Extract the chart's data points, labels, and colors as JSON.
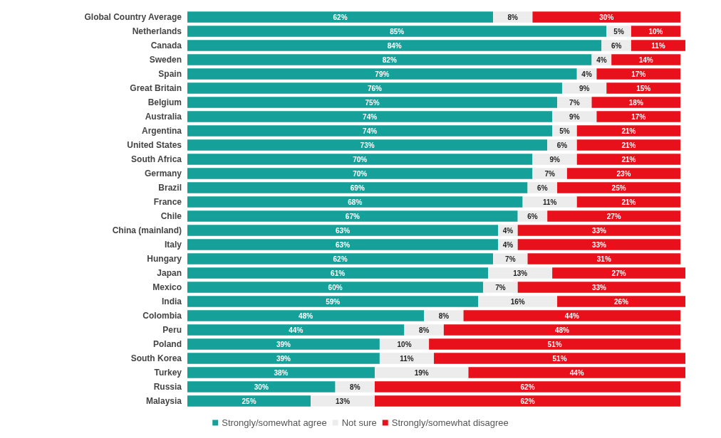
{
  "chart_data": {
    "type": "bar",
    "orientation": "horizontal",
    "stacked": true,
    "legend": "bottom",
    "tick_labels": "y",
    "categories": [
      "Global Country Average",
      "Netherlands",
      "Canada",
      "Sweden",
      "Spain",
      "Great Britain",
      "Belgium",
      "Australia",
      "Argentina",
      "United States",
      "South Africa",
      "Germany",
      "Brazil",
      "France",
      "Chile",
      "China (mainland)",
      "Italy",
      "Hungary",
      "Japan",
      "Mexico",
      "India",
      "Colombia",
      "Peru",
      "Poland",
      "South Korea",
      "Turkey",
      "Russia",
      "Malaysia"
    ],
    "series": [
      {
        "name": "Strongly/somewhat agree",
        "color": "#16a09a",
        "values": [
          62,
          85,
          84,
          82,
          79,
          76,
          75,
          74,
          74,
          73,
          70,
          70,
          69,
          68,
          67,
          63,
          63,
          62,
          61,
          60,
          59,
          48,
          44,
          39,
          39,
          38,
          30,
          25
        ],
        "value_labels": [
          "62%",
          "85%",
          "84%",
          "82%",
          "79%",
          "76%",
          "75%",
          "74%",
          "74%",
          "73%",
          "70%",
          "70%",
          "69%",
          "68%",
          "67%",
          "63%",
          "63%",
          "62%",
          "61%",
          "60%",
          "59%",
          "48%",
          "44%",
          "39%",
          "39%",
          "38%",
          "30%",
          "25%"
        ]
      },
      {
        "name": "Not sure",
        "color": "#ececec",
        "values": [
          8,
          5,
          6,
          4,
          4,
          9,
          7,
          9,
          5,
          6,
          9,
          7,
          6,
          11,
          6,
          4,
          4,
          7,
          13,
          7,
          16,
          8,
          8,
          10,
          11,
          19,
          8,
          13
        ],
        "value_labels": [
          "8%",
          "5%",
          "6%",
          "4%",
          "4%",
          "9%",
          "7%",
          "9%",
          "5%",
          "6%",
          "9%",
          "7%",
          "6%",
          "11%",
          "6%",
          "4%",
          "4%",
          "7%",
          "13%",
          "7%",
          "16%",
          "8%",
          "8%",
          "10%",
          "11%",
          "19%",
          "8%",
          "13%"
        ]
      },
      {
        "name": "Strongly/somewhat disagree",
        "color": "#e8101a",
        "values": [
          30,
          10,
          11,
          14,
          17,
          15,
          18,
          17,
          21,
          21,
          21,
          23,
          25,
          21,
          27,
          33,
          33,
          31,
          27,
          33,
          26,
          44,
          48,
          51,
          51,
          44,
          62,
          62
        ],
        "value_labels": [
          "30%",
          "10%",
          "11%",
          "14%",
          "17%",
          "15%",
          "18%",
          "17%",
          "21%",
          "21%",
          "21%",
          "23%",
          "25%",
          "21%",
          "27%",
          "33%",
          "33%",
          "31%",
          "27%",
          "33%",
          "26%",
          "44%",
          "48%",
          "51%",
          "51%",
          "44%",
          "62%",
          "62%"
        ]
      }
    ]
  }
}
